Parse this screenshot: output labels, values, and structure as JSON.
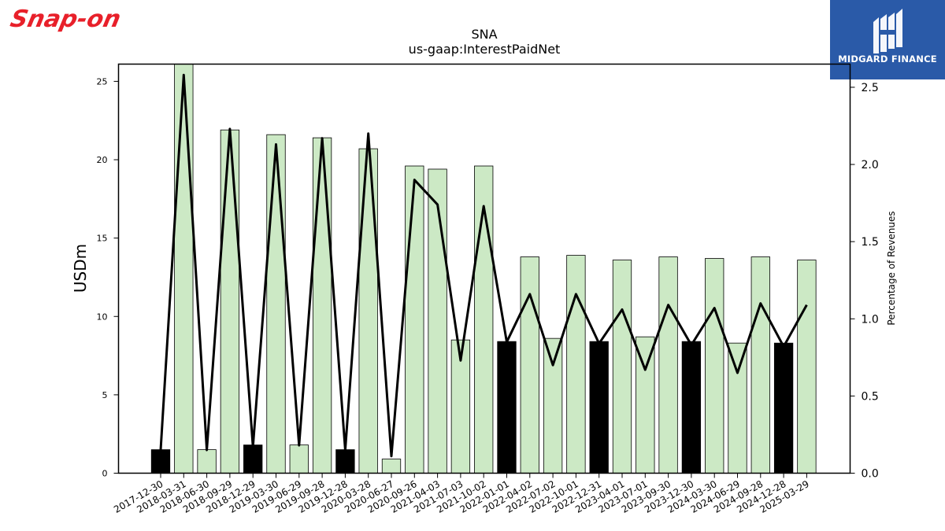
{
  "header": {
    "company_logo_text": "Snap-on",
    "brand_logo_text": "MIDGARD FINANCE"
  },
  "colors": {
    "bar_light": "#cce9c5",
    "bar_dark": "#000000",
    "line": "#000000",
    "logo_red": "#e8202a",
    "brand_blue": "#2a5aa8"
  },
  "chart_data": {
    "type": "bar",
    "title": "SNA",
    "subtitle": "us-gaap:InterestPaidNet",
    "ylabel": "USDm",
    "y2label": "Percentage of Revenues",
    "ylim": [
      0,
      26.1
    ],
    "y2lim": [
      0,
      2.65
    ],
    "yticks": [
      0,
      5,
      10,
      15,
      20,
      25
    ],
    "y2ticks": [
      "0.0",
      "0.5",
      "1.0",
      "1.5",
      "2.0",
      "2.5"
    ],
    "categories": [
      "2017-12-30",
      "2018-03-31",
      "2018-06-30",
      "2018-09-29",
      "2018-12-29",
      "2019-03-30",
      "2019-06-29",
      "2019-09-28",
      "2019-12-28",
      "2020-03-28",
      "2020-06-27",
      "2020-09-26",
      "2021-04-03",
      "2021-07-03",
      "2021-10-02",
      "2022-01-01",
      "2022-04-02",
      "2022-07-02",
      "2022-10-01",
      "2022-12-31",
      "2023-04-01",
      "2023-07-01",
      "2023-09-30",
      "2023-12-30",
      "2024-03-30",
      "2024-06-29",
      "2024-09-28",
      "2024-12-28",
      "2025-03-29"
    ],
    "series": [
      {
        "values": [
          1.5,
          26.1,
          1.5,
          21.9,
          1.8,
          21.6,
          1.8,
          21.4,
          1.5,
          20.7,
          0.9,
          19.6,
          19.4,
          8.5,
          19.6,
          8.4,
          13.8,
          8.6,
          13.9,
          8.4,
          13.6,
          8.7,
          13.8,
          8.4,
          13.7,
          8.3,
          13.8,
          8.3,
          13.6
        ],
        "highlight": [
          true,
          false,
          false,
          false,
          true,
          false,
          false,
          false,
          true,
          false,
          false,
          false,
          false,
          false,
          false,
          true,
          false,
          false,
          false,
          true,
          false,
          false,
          false,
          true,
          false,
          false,
          false,
          true,
          false
        ],
        "axis": "left"
      },
      {
        "values": [
          0.15,
          2.58,
          0.15,
          2.23,
          0.17,
          2.13,
          0.18,
          2.17,
          0.15,
          2.2,
          0.11,
          1.9,
          1.74,
          0.73,
          1.73,
          0.85,
          1.16,
          0.7,
          1.16,
          0.84,
          1.06,
          0.67,
          1.09,
          0.83,
          1.07,
          0.65,
          1.1,
          0.82,
          1.09
        ],
        "axis": "right",
        "style": "line"
      }
    ],
    "grid": false,
    "legend": "none"
  }
}
